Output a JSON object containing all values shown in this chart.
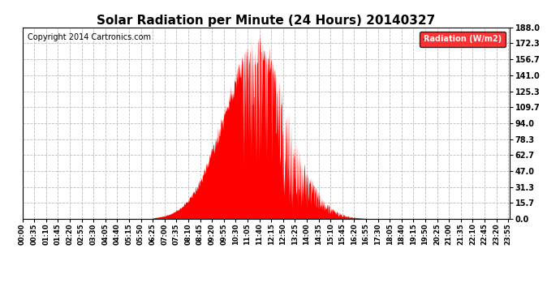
{
  "title": "Solar Radiation per Minute (24 Hours) 20140327",
  "copyright_text": "Copyright 2014 Cartronics.com",
  "legend_label": "Radiation (W/m2)",
  "yticks": [
    0.0,
    15.7,
    31.3,
    47.0,
    62.7,
    78.3,
    94.0,
    109.7,
    125.3,
    141.0,
    156.7,
    172.3,
    188.0
  ],
  "ymax": 188.0,
  "bar_color": "#FF0000",
  "background_color": "#FFFFFF",
  "grid_color": "#AAAAAA",
  "title_fontsize": 11,
  "copyright_fontsize": 7,
  "legend_fontsize": 7,
  "tick_fontsize": 6,
  "sunrise_min": 387,
  "sunset_min": 1120,
  "peak_value": 188.0,
  "tick_interval": 35
}
